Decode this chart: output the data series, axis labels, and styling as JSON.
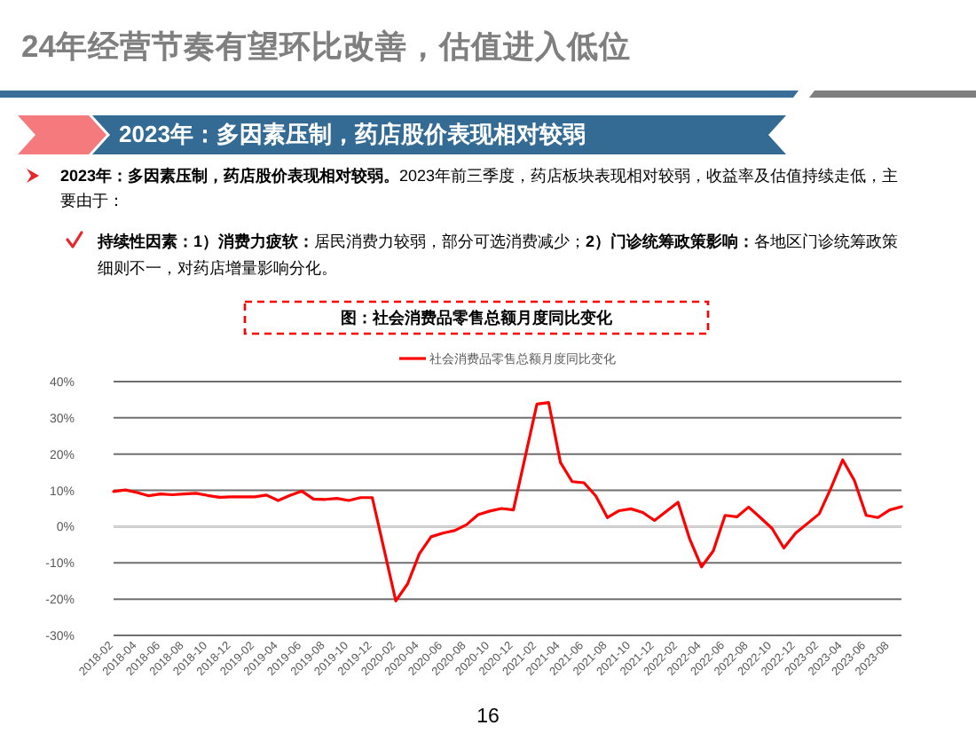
{
  "chart_data": {
    "type": "line",
    "title": "24年经营节奏有望环比改善，估值进入低位",
    "subtitle": "2023年：多因素压制，药店股价表现相对较弱",
    "annotations": [
      "**2023年：多因素压制，药店股价表现相对较弱。**2023年前三季度，药店板块表现相对较弱，收益率及估值持续走低，主要由于：",
      "**持续性因素：1）消费力疲软：**居民消费力较弱，部分可选消费减少；**2）门诊统筹政策影响：**各地区门诊统筹政策细则不一，对药店增量影响分化。",
      "图：社会消费品零售总额月度同比变化",
      "16"
    ],
    "x": [
      "2018-02",
      "2018-03",
      "2018-04",
      "2018-05",
      "2018-06",
      "2018-07",
      "2018-08",
      "2018-09",
      "2018-10",
      "2018-11",
      "2018-12",
      "2019-02",
      "2019-03",
      "2019-04",
      "2019-05",
      "2019-06",
      "2019-07",
      "2019-08",
      "2019-09",
      "2019-10",
      "2019-11",
      "2019-12",
      "2020-02",
      "2020-03",
      "2020-04",
      "2020-05",
      "2020-06",
      "2020-07",
      "2020-08",
      "2020-09",
      "2020-10",
      "2020-11",
      "2020-12",
      "2021-02",
      "2021-03",
      "2021-04",
      "2021-05",
      "2021-06",
      "2021-07",
      "2021-08",
      "2021-09",
      "2021-10",
      "2021-11",
      "2021-12",
      "2022-02",
      "2022-03",
      "2022-04",
      "2022-05",
      "2022-06",
      "2022-07",
      "2022-08",
      "2022-09",
      "2022-10",
      "2022-11",
      "2022-12",
      "2023-02",
      "2023-03",
      "2023-04",
      "2023-05",
      "2023-06",
      "2023-07",
      "2023-08",
      "2023-09"
    ],
    "series": [
      {
        "name": "社会消费品零售总额月度同比变化",
        "color": "#ff0000",
        "values": [
          9.7,
          10.1,
          9.4,
          8.5,
          9.0,
          8.8,
          9.0,
          9.2,
          8.6,
          8.1,
          8.2,
          8.2,
          8.7,
          7.2,
          8.6,
          9.8,
          7.6,
          7.5,
          7.8,
          7.2,
          8.0,
          8.0,
          -20.5,
          -15.8,
          -7.5,
          -2.8,
          -1.8,
          -1.1,
          0.5,
          3.3,
          4.3,
          5.0,
          4.6,
          33.8,
          34.2,
          17.7,
          12.4,
          12.1,
          8.5,
          2.5,
          4.4,
          4.9,
          3.9,
          1.7,
          6.7,
          -3.5,
          -11.1,
          -6.7,
          3.1,
          2.7,
          5.4,
          2.5,
          -0.5,
          -5.9,
          -1.8,
          3.5,
          10.6,
          18.4,
          12.7,
          3.1,
          2.5,
          4.6,
          5.5
        ]
      }
    ],
    "xlim": [
      "2018-02",
      "2023-09"
    ],
    "xticks": [
      "2018-02",
      "2018-04",
      "2018-06",
      "2018-08",
      "2018-10",
      "2018-12",
      "2019-02",
      "2019-04",
      "2019-06",
      "2019-08",
      "2019-10",
      "2019-12",
      "2020-02",
      "2020-04",
      "2020-06",
      "2020-08",
      "2020-10",
      "2020-12",
      "2021-02",
      "2021-04",
      "2021-06",
      "2021-08",
      "2021-10",
      "2021-12",
      "2022-02",
      "2022-04",
      "2022-06",
      "2022-08",
      "2022-10",
      "2022-12",
      "2023-02",
      "2023-04",
      "2023-06",
      "2023-08"
    ],
    "ylim": [
      -30,
      40
    ],
    "yticks": [
      {
        "value": -30,
        "label": "-30%"
      },
      {
        "value": -20,
        "label": "-20%"
      },
      {
        "value": -10,
        "label": "-10%"
      },
      {
        "value": 0,
        "label": "0%"
      },
      {
        "value": 10,
        "label": "10%"
      },
      {
        "value": 20,
        "label": "20%"
      },
      {
        "value": 30,
        "label": "30%"
      },
      {
        "value": 40,
        "label": "40%"
      }
    ],
    "grid": "y",
    "legend": "top"
  }
}
